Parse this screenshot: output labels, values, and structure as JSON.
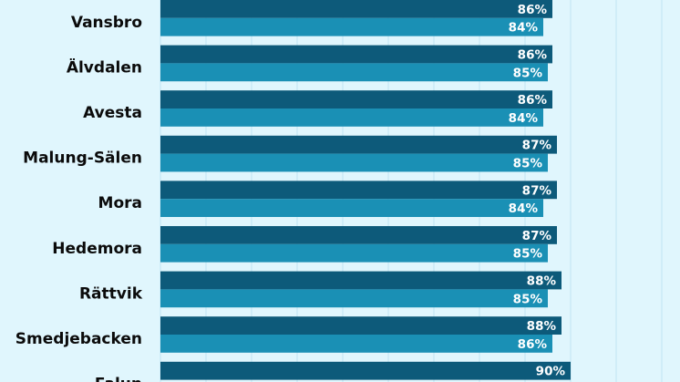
{
  "chart_data": {
    "type": "bar",
    "orientation": "horizontal",
    "categories": [
      "Vansbro",
      "Älvdalen",
      "Avesta",
      "Malung-Sälen",
      "Mora",
      "Hedemora",
      "Rättvik",
      "Smedjebacken",
      "Falun"
    ],
    "series": [
      {
        "values": [
          86,
          86,
          86,
          87,
          87,
          87,
          88,
          88,
          90
        ],
        "labels": [
          "86%",
          "86%",
          "86%",
          "87%",
          "87%",
          "87%",
          "88%",
          "88%",
          "90%"
        ],
        "color": "#0d5a7a"
      },
      {
        "values": [
          84,
          85,
          84,
          85,
          84,
          85,
          85,
          86,
          null
        ],
        "labels": [
          "84%",
          "85%",
          "84%",
          "85%",
          "84%",
          "85%",
          "85%",
          "86%",
          ""
        ],
        "color": "#1a90b5"
      }
    ],
    "grid": true,
    "gridline_color": "#bfe4f2",
    "background": "#e0f6fd",
    "text_color": "#0b0b0b",
    "value_label_color": "#ffffff"
  }
}
